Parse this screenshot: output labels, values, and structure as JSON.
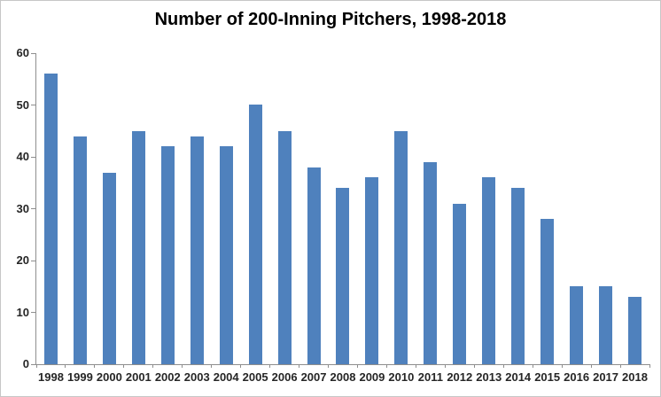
{
  "chart_data": {
    "type": "bar",
    "title": "Number of 200-Inning Pitchers, 1998-2018",
    "categories": [
      "1998",
      "1999",
      "2000",
      "2001",
      "2002",
      "2003",
      "2004",
      "2005",
      "2006",
      "2007",
      "2008",
      "2009",
      "2010",
      "2011",
      "2012",
      "2013",
      "2014",
      "2015",
      "2016",
      "2017",
      "2018"
    ],
    "values": [
      56,
      44,
      37,
      45,
      42,
      44,
      42,
      50,
      45,
      38,
      34,
      36,
      45,
      39,
      31,
      36,
      34,
      28,
      15,
      15,
      13
    ],
    "xlabel": "",
    "ylabel": "",
    "ylim": [
      0,
      60
    ],
    "ytick_step": 10,
    "ytick_labels": [
      "0",
      "10",
      "20",
      "30",
      "40",
      "50",
      "60"
    ],
    "grid": false,
    "legend_position": "none",
    "bar_color": "#4F81BD",
    "axis_color": "#8E8E8E",
    "tick_label_color": "#262626",
    "title_color": "#000000",
    "chart_border_color": "#C6C6C6",
    "background_color": "#FFFFFF"
  }
}
